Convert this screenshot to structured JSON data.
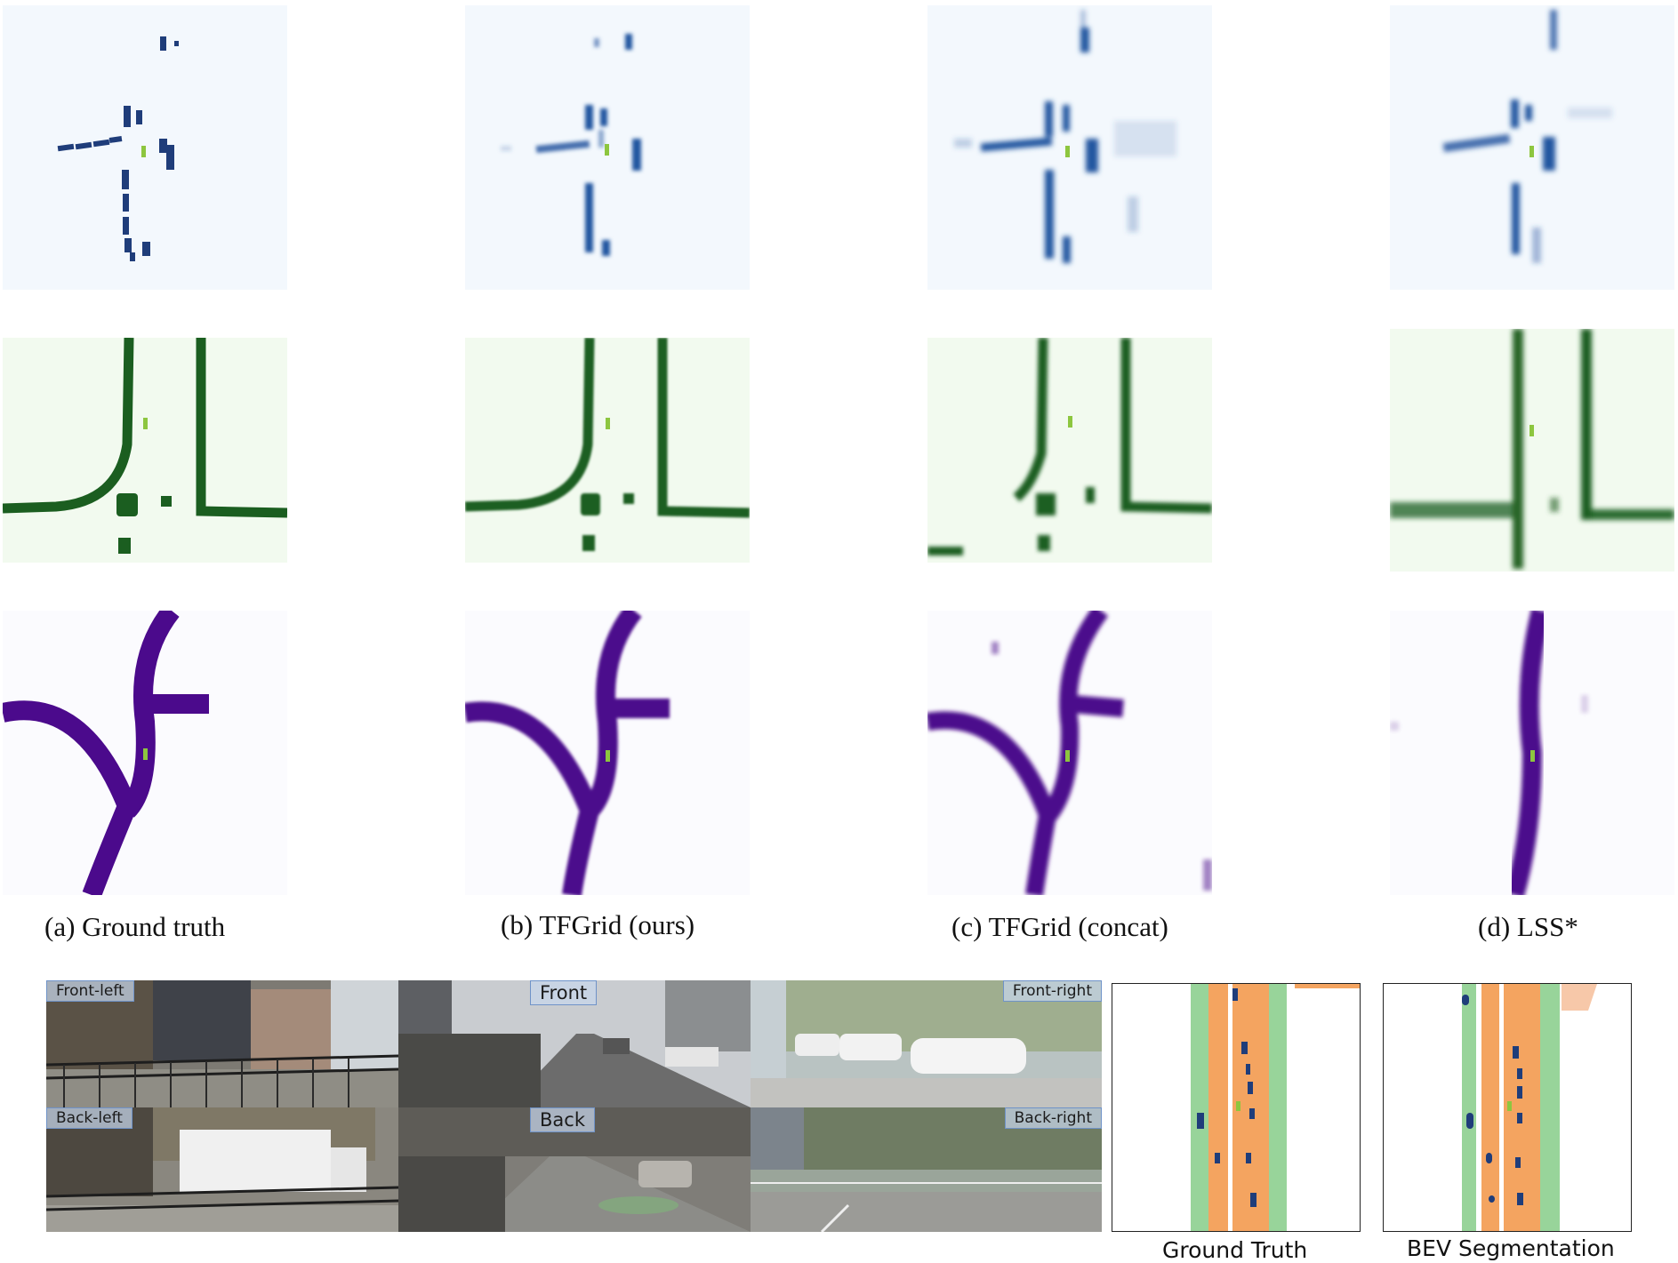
{
  "captions": {
    "a": "(a) Ground truth",
    "b": "(b) TFGrid (ours)",
    "c": "(c) TFGrid (concat)",
    "d": "(d) LSS*"
  },
  "cameras": {
    "front_left": "Front-left",
    "front": "Front",
    "front_right": "Front-right",
    "back_left": "Back-left",
    "back": "Back",
    "back_right": "Back-right"
  },
  "bev": {
    "ground_truth": "Ground Truth",
    "segmentation": "BEV Segmentation"
  },
  "colors": {
    "vehicle": "#1f3d7a",
    "vehicle_bg": "#f3f8fd",
    "drivable": "#1b5e20",
    "drivable_bg": "#f2faef",
    "lane": "#4b0a8c",
    "lane_bg": "#fbfbfe",
    "ego": "#8dc63f",
    "road_orange": "#f4a460",
    "road_green": "#98d49a",
    "road_white": "#ffffff"
  }
}
